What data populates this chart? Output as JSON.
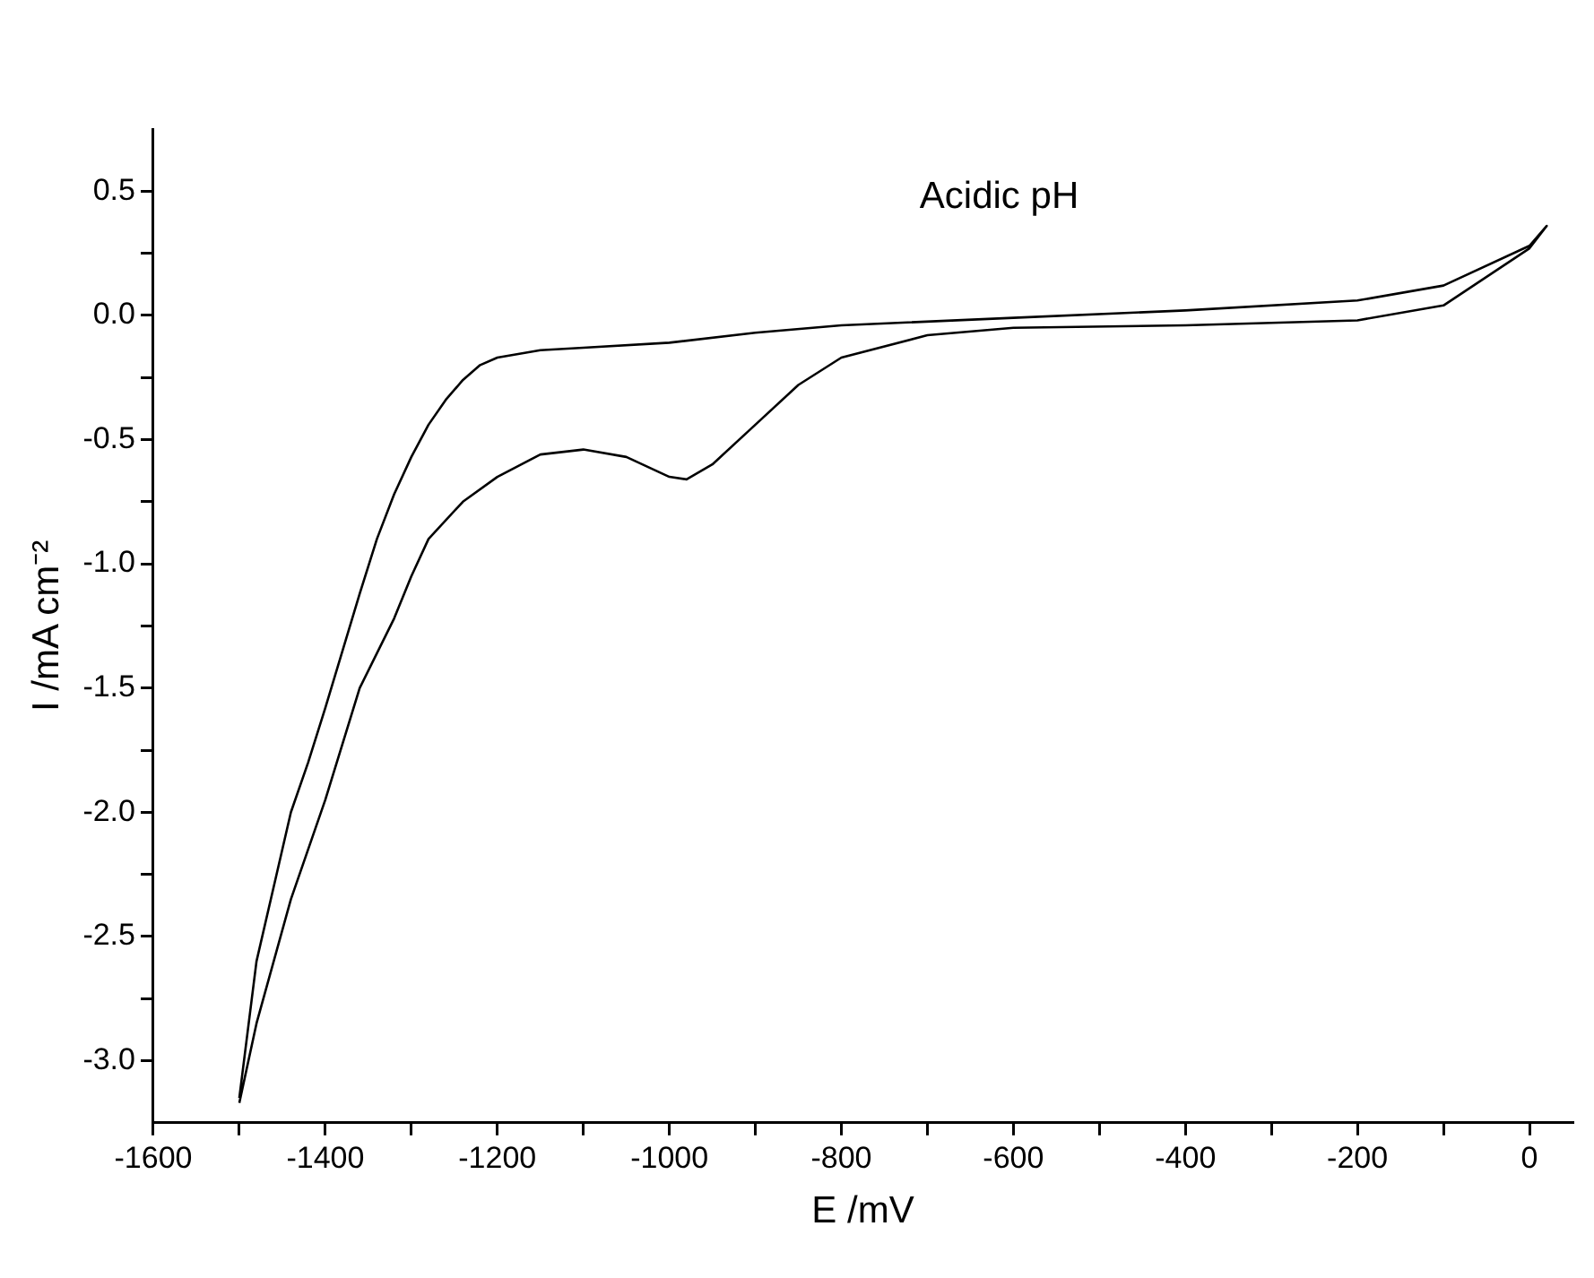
{
  "chart_data": {
    "type": "line",
    "xlabel": "E /mV",
    "ylabel": "I /mA cm⁻²",
    "annotations": [
      "Acidic pH"
    ],
    "xlim": [
      -1600,
      50
    ],
    "xticks": [
      -1600,
      {
        "value": -1500,
        "label": null
      },
      -1400,
      {
        "value": -1300,
        "label": null
      },
      -1200,
      {
        "value": -1100,
        "label": null
      },
      -1000,
      {
        "value": -900,
        "label": null
      },
      -800,
      {
        "value": -700,
        "label": null
      },
      -600,
      {
        "value": -500,
        "label": null
      },
      -400,
      {
        "value": -300,
        "label": null
      },
      -200,
      {
        "value": -100,
        "label": null
      },
      0
    ],
    "ylim": [
      -3.25,
      0.75
    ],
    "yticks": [
      {
        "value": -3,
        "label": "-3.0"
      },
      {
        "value": -2.75,
        "label": null
      },
      {
        "value": -2.5,
        "label": "-2.5"
      },
      {
        "value": -2.25,
        "label": null
      },
      {
        "value": -2,
        "label": "-2.0"
      },
      {
        "value": -1.75,
        "label": null
      },
      {
        "value": -1.5,
        "label": "-1.5"
      },
      {
        "value": -1.25,
        "label": null
      },
      {
        "value": -1,
        "label": "-1.0"
      },
      {
        "value": -0.75,
        "label": null
      },
      {
        "value": -0.5,
        "label": "-0.5"
      },
      {
        "value": -0.25,
        "label": null
      },
      {
        "value": 0,
        "label": "0.0"
      },
      {
        "value": 0.25,
        "label": null
      },
      {
        "value": 0.5,
        "label": "0.5"
      }
    ],
    "grid": false,
    "legend": false,
    "marker": "none",
    "line_style": "solid",
    "series": [
      {
        "color": "#000000",
        "x": [
          -1500,
          -1480,
          -1460,
          -1440,
          -1420,
          -1400,
          -1380,
          -1360,
          -1340,
          -1320,
          -1300,
          -1280,
          -1260,
          -1240,
          -1220,
          -1200,
          -1150,
          -1100,
          -1000,
          -900,
          -800,
          -600,
          -400,
          -200,
          -100,
          0,
          20,
          0,
          -100,
          -200,
          -400,
          -600,
          -700,
          -800,
          -850,
          -900,
          -950,
          -980,
          -1000,
          -1050,
          -1100,
          -1150,
          -1200,
          -1240,
          -1280,
          -1300,
          -1320,
          -1360,
          -1400,
          -1440,
          -1480,
          -1500
        ],
        "values": [
          -3.15,
          -2.6,
          -2.3,
          -2.0,
          -1.8,
          -1.58,
          -1.35,
          -1.12,
          -0.9,
          -0.72,
          -0.57,
          -0.44,
          -0.34,
          -0.26,
          -0.2,
          -0.17,
          -0.14,
          -0.13,
          -0.11,
          -0.07,
          -0.04,
          -0.01,
          0.02,
          0.06,
          0.12,
          0.28,
          0.36,
          0.27,
          0.04,
          -0.02,
          -0.04,
          -0.05,
          -0.08,
          -0.17,
          -0.28,
          -0.44,
          -0.6,
          -0.66,
          -0.65,
          -0.57,
          -0.54,
          -0.56,
          -0.65,
          -0.75,
          -0.9,
          -1.05,
          -1.22,
          -1.5,
          -1.95,
          -2.35,
          -2.85,
          -3.17
        ]
      }
    ]
  }
}
